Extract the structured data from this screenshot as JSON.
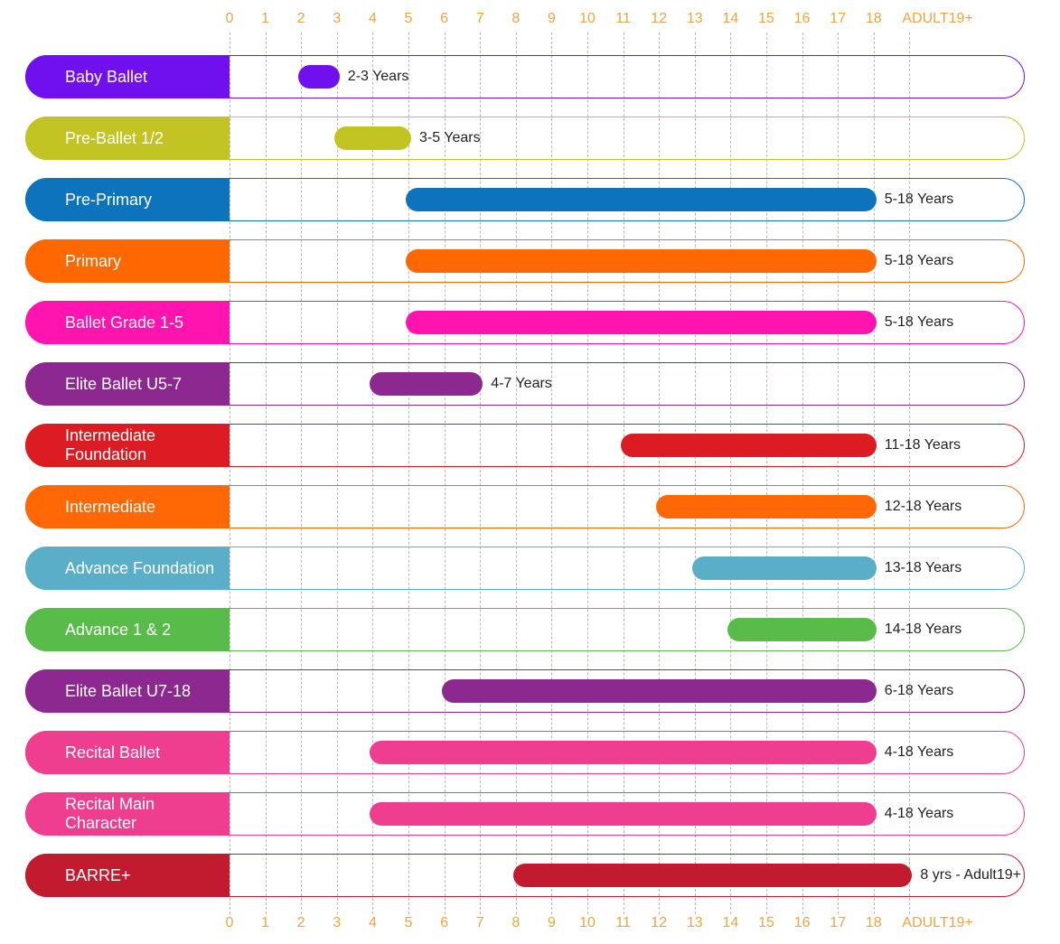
{
  "chart_data": {
    "type": "gantt-range",
    "x_ticks": [
      "0",
      "1",
      "2",
      "3",
      "4",
      "5",
      "6",
      "7",
      "8",
      "9",
      "10",
      "11",
      "12",
      "13",
      "14",
      "15",
      "16",
      "17",
      "18",
      "ADULT19+"
    ],
    "colors": {
      "tick": "#f2a33a",
      "grid": "#b9b9b9"
    },
    "rows": [
      {
        "name": "Baby Ballet",
        "start": 2,
        "end": 3,
        "range_label": "2-3 Years",
        "color": "#7110ef"
      },
      {
        "name": "Pre-Ballet 1/2",
        "start": 3,
        "end": 5,
        "range_label": "3-5 Years",
        "color": "#c2c424"
      },
      {
        "name": "Pre-Primary",
        "start": 5,
        "end": 18,
        "range_label": "5-18 Years",
        "color": "#0d73bd"
      },
      {
        "name": "Primary",
        "start": 5,
        "end": 18,
        "range_label": "5-18 Years",
        "color": "#ff6700"
      },
      {
        "name": "Ballet Grade 1-5",
        "start": 5,
        "end": 18,
        "range_label": "5-18 Years",
        "color": "#ff14b0"
      },
      {
        "name": "Elite Ballet U5-7",
        "start": 4,
        "end": 7,
        "range_label": "4-7 Years",
        "color": "#8d2891"
      },
      {
        "name": "Intermediate Foundation",
        "start": 11,
        "end": 18,
        "range_label": "11-18 Years",
        "color": "#dc1b23"
      },
      {
        "name": "Intermediate",
        "start": 12,
        "end": 18,
        "range_label": "12-18 Years",
        "color": "#ff6805"
      },
      {
        "name": "Advance Foundation",
        "start": 13,
        "end": 18,
        "range_label": "13-18 Years",
        "color": "#5aaec7"
      },
      {
        "name": "Advance 1 & 2",
        "start": 14,
        "end": 18,
        "range_label": "14-18 Years",
        "color": "#58bb4a"
      },
      {
        "name": "Elite Ballet U7-18",
        "start": 6,
        "end": 18,
        "range_label": "6-18 Years",
        "color": "#8d2891"
      },
      {
        "name": "Recital Ballet",
        "start": 4,
        "end": 18,
        "range_label": "4-18 Years",
        "color": "#ef3d8f"
      },
      {
        "name": "Recital Main Character",
        "start": 4,
        "end": 18,
        "range_label": "4-18 Years",
        "color": "#ef3d8f"
      },
      {
        "name": "BARRE+",
        "start": 8,
        "end": 19,
        "range_label": "8 yrs - Adult19+",
        "color": "#c21a2f"
      }
    ]
  }
}
